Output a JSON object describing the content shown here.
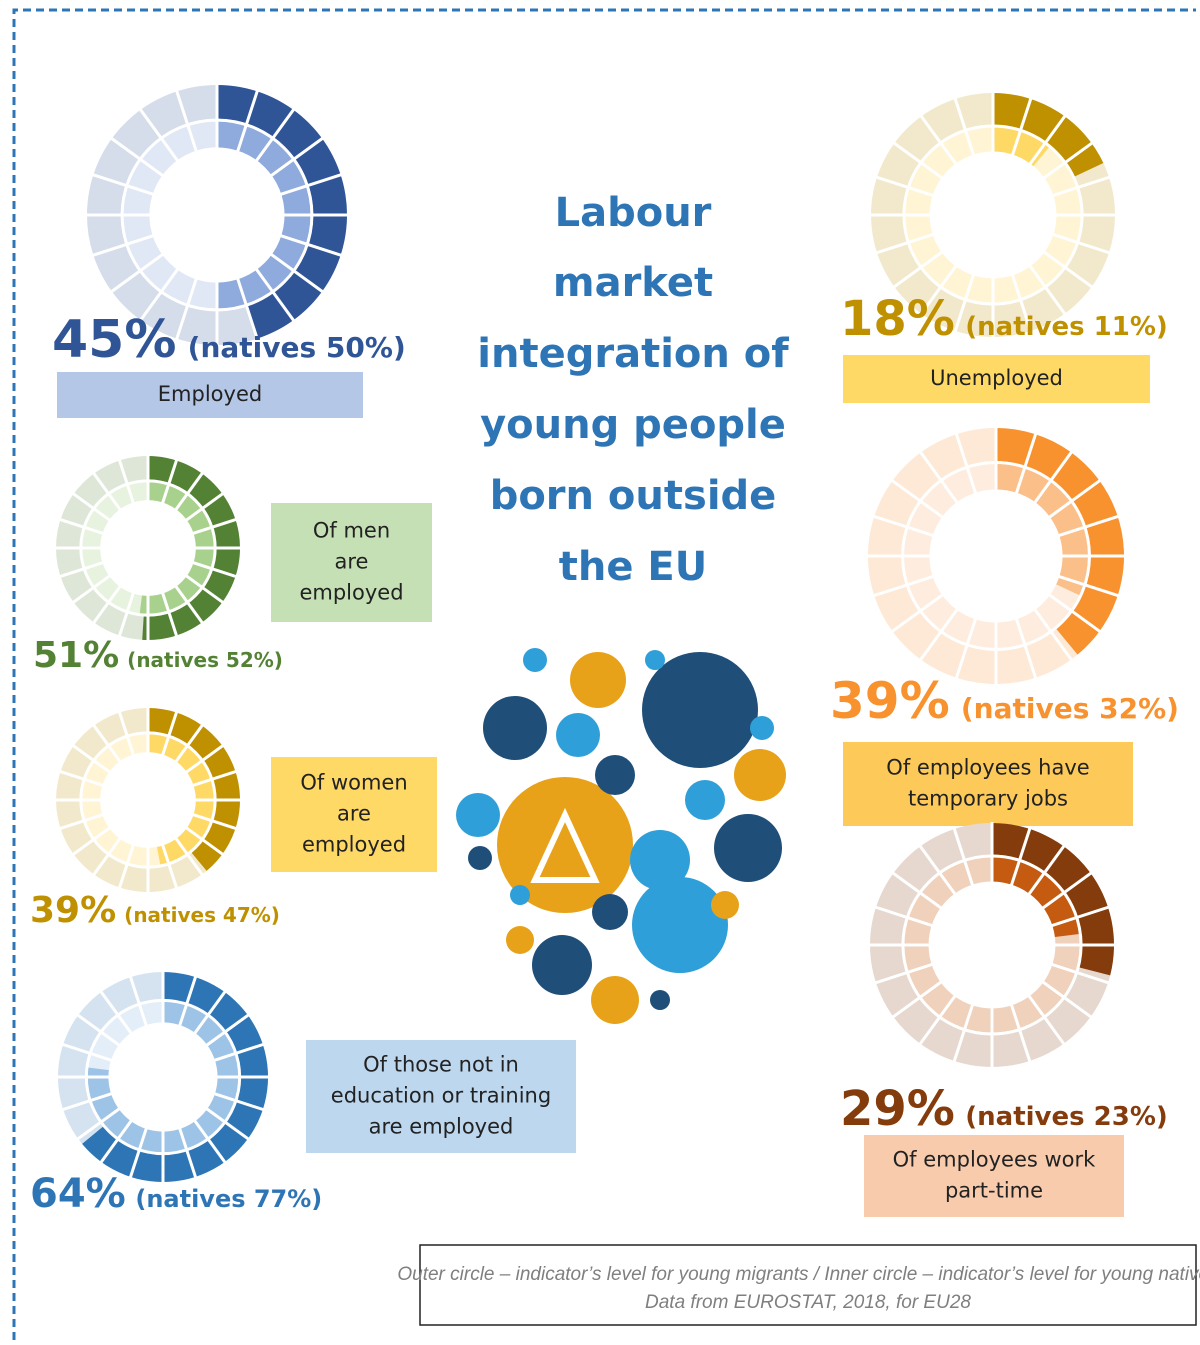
{
  "title": [
    "Labour",
    "market",
    "integration of",
    "young people",
    "born outside",
    "the EU"
  ],
  "chart_data": [
    {
      "type": "donut",
      "values": [
        45,
        50
      ],
      "value_labels": [
        "45%",
        "(natives 50%)"
      ],
      "label": [
        "Employed"
      ],
      "colors": [
        "#2f5597",
        "#8faadc"
      ],
      "label_color": "#b4c7e7"
    },
    {
      "type": "donut",
      "values": [
        18,
        11
      ],
      "value_labels": [
        "18%",
        "(natives 11%)"
      ],
      "label": [
        "Unemployed"
      ],
      "colors": [
        "#bf9000",
        "#ffd966"
      ],
      "label_color": "#ffd966"
    },
    {
      "type": "donut",
      "values": [
        51,
        52
      ],
      "value_labels": [
        "51%",
        "(natives 52%)"
      ],
      "label": [
        "Of men",
        "are",
        "employed"
      ],
      "colors": [
        "#548235",
        "#a9d18e"
      ],
      "label_color": "#c5e0b4"
    },
    {
      "type": "donut",
      "values": [
        39,
        32
      ],
      "value_labels": [
        "39%",
        "(natives 32%)"
      ],
      "label": [
        "Of employees have",
        "temporary jobs"
      ],
      "colors": [
        "#f7922f",
        "#fbbf8a"
      ],
      "label_color": "#fdca5a"
    },
    {
      "type": "donut",
      "values": [
        39,
        47
      ],
      "value_labels": [
        "39%",
        "(natives 47%)"
      ],
      "label": [
        "Of women",
        "are",
        "employed"
      ],
      "colors": [
        "#bf9000",
        "#ffd966"
      ],
      "label_color": "#ffd966"
    },
    {
      "type": "donut",
      "values": [
        64,
        77
      ],
      "value_labels": [
        "64%",
        "(natives 77%)"
      ],
      "label": [
        "Of those not in",
        "education or training",
        "are employed"
      ],
      "colors": [
        "#2e75b6",
        "#9dc3e6"
      ],
      "label_color": "#bdd7ee"
    },
    {
      "type": "donut",
      "values": [
        29,
        23
      ],
      "value_labels": [
        "29%",
        "(natives 23%)"
      ],
      "label": [
        "Of employees work",
        "part-time"
      ],
      "colors": [
        "#843c0c",
        "#c55a11"
      ],
      "label_color": "#f8cbad"
    }
  ],
  "notes": [
    "Outer circle – indicator’s level for young migrants / Inner circle – indicator’s level for young natives",
    "Data from EUROSTAT, 2018,  for EU28"
  ]
}
